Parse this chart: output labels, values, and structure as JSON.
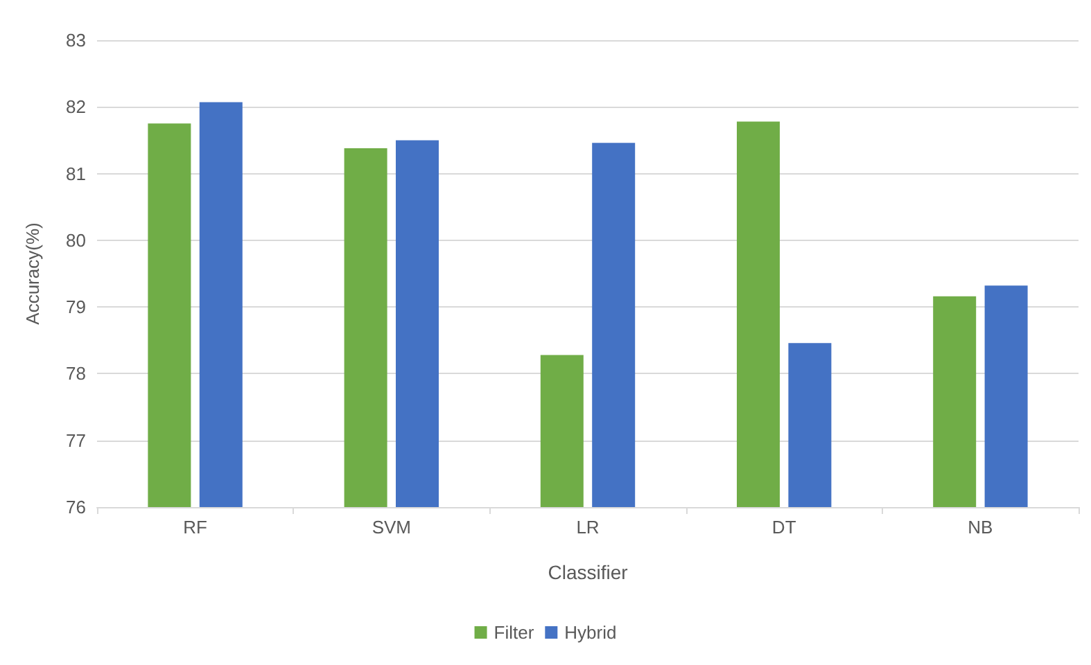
{
  "chart_data": {
    "type": "bar",
    "xlabel": "Classifier",
    "ylabel": "Accuracy(%)",
    "categories": [
      "RF",
      "SVM",
      "LR",
      "DT",
      "NB"
    ],
    "series": [
      {
        "name": "Filter",
        "color": "#70ad47",
        "values": [
          81.75,
          81.38,
          78.28,
          81.78,
          79.16
        ]
      },
      {
        "name": "Hybrid",
        "color": "#4472c4",
        "values": [
          82.07,
          81.5,
          81.46,
          78.46,
          79.32
        ]
      }
    ],
    "ylim": [
      76,
      83
    ],
    "yticks": [
      76,
      77,
      78,
      79,
      80,
      81,
      82,
      83
    ],
    "grid": "y",
    "legend": "bottom"
  }
}
